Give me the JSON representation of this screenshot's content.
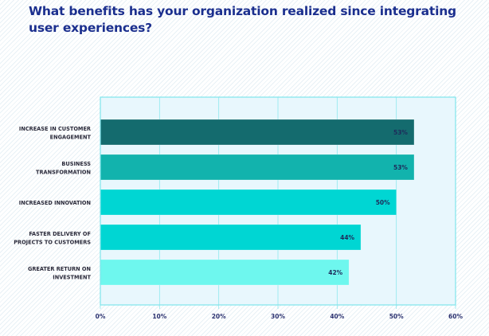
{
  "title": "What benefits has your organization realized since integrating user experiences?",
  "chart_data": {
    "type": "bar",
    "orientation": "horizontal",
    "title": "What benefits has your organization realized since integrating user experiences?",
    "categories": [
      [
        "INCREASE IN CUSTOMER",
        "ENGAGEMENT"
      ],
      [
        "BUSINESS",
        "TRANSFORMATION"
      ],
      [
        "INCREASED INNOVATION"
      ],
      [
        "FASTER DELIVERY OF",
        "PROJECTS TO CUSTOMERS"
      ],
      [
        "GREATER RETURN ON",
        "INVESTMENT"
      ]
    ],
    "values": [
      53,
      53,
      50,
      44,
      42
    ],
    "value_labels": [
      "53%",
      "53%",
      "50%",
      "44%",
      "42%"
    ],
    "bar_colors": [
      "#146b6e",
      "#12b3ad",
      "#00d6d3",
      "#00d6d3",
      "#6ef7ee"
    ],
    "xlim": [
      0,
      60
    ],
    "xticks": [
      0,
      10,
      20,
      30,
      40,
      50,
      60
    ],
    "xtick_labels": [
      "0%",
      "10%",
      "20%",
      "30%",
      "40%",
      "50%",
      "60%"
    ],
    "xlabel": "",
    "ylabel": "",
    "grid": true,
    "legend": "none",
    "plot_background": "#e8f7fd",
    "grid_color": "#8ee8ee"
  }
}
